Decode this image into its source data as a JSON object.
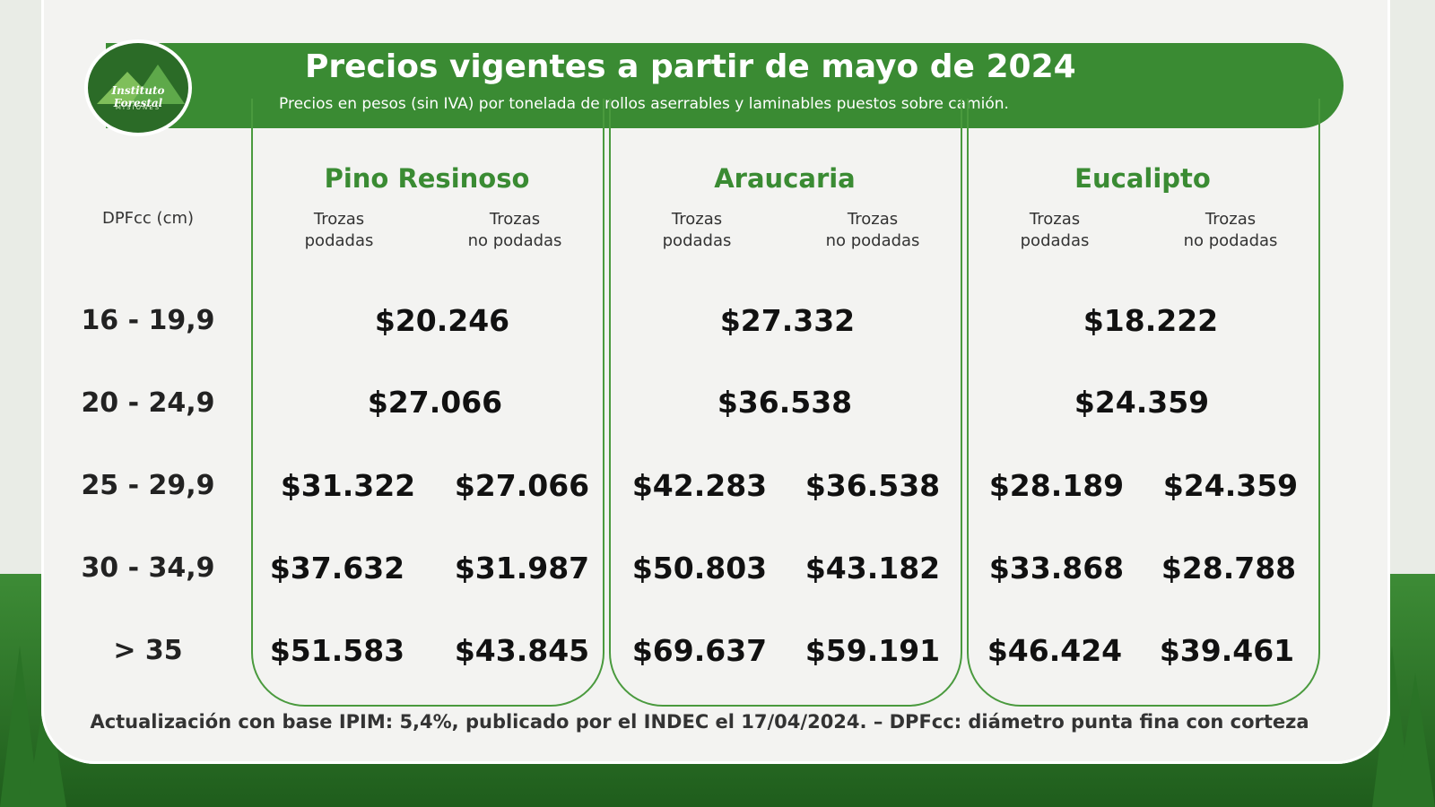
{
  "header": {
    "title": "Precios vigentes a partir de mayo de 2024",
    "subtitle": "Precios en pesos (sin IVA) por tonelada de rollos aserrables y laminables puestos sobre camión.",
    "logo_text": "Instituto Forestal",
    "logo_sub": "MISIONES"
  },
  "table": {
    "dpf_header": "DPFcc (cm)",
    "sub_headers": [
      "Trozas\npodadas",
      "Trozas\nno podadas"
    ],
    "species": [
      "Pino Resinoso",
      "Araucaria",
      "Eucalipto"
    ],
    "ranges": [
      "16 - 19,9",
      "20 - 24,9",
      "25 - 29,9",
      "30 - 34,9",
      "> 35"
    ],
    "merged_rows": {
      "r0": [
        "$20.246",
        "$27.332",
        "$18.222"
      ],
      "r1": [
        "$27.066",
        "$36.538",
        "$24.359"
      ]
    },
    "split_rows": {
      "r2": [
        "$31.322",
        "$27.066",
        "$42.283",
        "$36.538",
        "$28.189",
        "$24.359"
      ],
      "r3": [
        "$37.632",
        "$31.987",
        "$50.803",
        "$43.182",
        "$33.868",
        "$28.788"
      ],
      "r4": [
        "$51.583",
        "$43.845",
        "$69.637",
        "$59.191",
        "$46.424",
        "$39.461"
      ]
    }
  },
  "footer": "Actualización con base IPIM: 5,4%, publicado por el INDEC el 17/04/2024.  –  DPFcc: diámetro punta fina con corteza",
  "colors": {
    "green": "#3a8b33",
    "card": "#f3f3f1"
  }
}
